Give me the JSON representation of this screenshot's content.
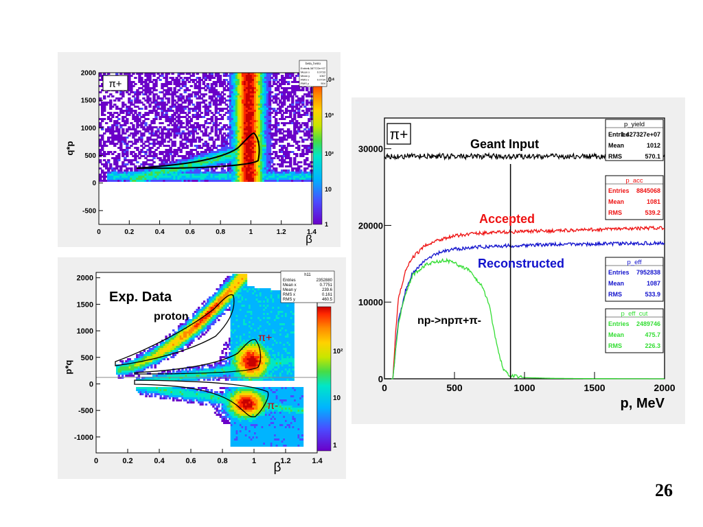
{
  "slide": {
    "page_number": "26"
  },
  "colors": {
    "panel_bg": "#efefef",
    "palette": [
      "#6a00c8",
      "#4b4bff",
      "#00b4ff",
      "#00e6c8",
      "#46dc46",
      "#c8e600",
      "#ffd200",
      "#ff8c00",
      "#ff2800",
      "#c80000"
    ],
    "geant": "#000000",
    "accepted": "#ee1111",
    "reconstructed": "#1111cc",
    "cut": "#33dd33"
  },
  "chart_data": [
    {
      "type": "heatmap",
      "id": "top-left",
      "particle_label": "π+",
      "xlabel": "β",
      "ylabel": "q*p",
      "x_ticks": [
        "0",
        "0.2",
        "0.4",
        "0.6",
        "0.8",
        "1",
        "1.2",
        "1.4"
      ],
      "y_ticks": [
        "-500",
        "0",
        "500",
        "1000",
        "1500",
        "2000"
      ],
      "xlim": [
        0,
        1.4
      ],
      "ylim": [
        -750,
        2000
      ],
      "z_ticks": [
        "1",
        "10",
        "10²",
        "10³",
        "10⁴"
      ],
      "stats_box": {
        "title": "beta_hvsto",
        "rows": [
          [
            "Entries",
            "1.387722e+07"
          ],
          [
            "Mean x",
            "0.9733"
          ],
          [
            "Mean y",
            "1067"
          ],
          [
            "RMS x",
            "0.0734"
          ],
          [
            "RMS y",
            "504"
          ]
        ]
      }
    },
    {
      "type": "heatmap",
      "id": "bottom-left",
      "annotation": "Exp. Data",
      "labels": {
        "proton": "proton",
        "pi_plus": "π+",
        "pi_minus": "π-"
      },
      "xlabel": "β",
      "ylabel": "p*q",
      "x_ticks": [
        "0",
        "0.2",
        "0.4",
        "0.6",
        "0.8",
        "1",
        "1.2",
        "1.4"
      ],
      "y_ticks": [
        "-1000",
        "-500",
        "0",
        "500",
        "1000",
        "1500",
        "2000"
      ],
      "xlim": [
        0,
        1.4
      ],
      "ylim": [
        -1300,
        2100
      ],
      "z_ticks": [
        "1",
        "10",
        "10²"
      ],
      "stats_box": {
        "title": "h11",
        "rows": [
          [
            "Entries",
            "2352880"
          ],
          [
            "Mean x",
            "0.7751"
          ],
          [
            "Mean y",
            "239.6"
          ],
          [
            "RMS x",
            "0.161"
          ],
          [
            "RMS y",
            "460.5"
          ]
        ]
      }
    },
    {
      "type": "line",
      "id": "right",
      "particle_label": "π+",
      "xlabel": "p, MeV",
      "x_ticks": [
        "0",
        "500",
        "1000",
        "1500",
        "2000"
      ],
      "y_ticks": [
        "0",
        "10000",
        "20000",
        "30000"
      ],
      "xlim": [
        0,
        2000
      ],
      "ylim": [
        0,
        34000
      ],
      "cut_line_x": 900,
      "annotations": {
        "geant": "Geant Input",
        "accepted": "Accepted",
        "reconstructed": "Reconstructed",
        "reaction": "np->npπ+π-"
      },
      "series": [
        {
          "name": "p_yield",
          "x": [
            0,
            20,
            40,
            100,
            200,
            400,
            600,
            800,
            1000,
            1200,
            1400,
            1600,
            1800,
            2000
          ],
          "values": [
            29000,
            29000,
            29000,
            29000,
            29000,
            29000,
            29000,
            29000,
            29000,
            29000,
            29000,
            29000,
            29000,
            29000
          ]
        },
        {
          "name": "p_acc",
          "x": [
            0,
            60,
            80,
            100,
            150,
            200,
            300,
            400,
            500,
            600,
            800,
            1000,
            1200,
            1400,
            1600,
            1800,
            2000
          ],
          "values": [
            0,
            0,
            6000,
            10500,
            14000,
            15800,
            17500,
            18200,
            18600,
            18900,
            19100,
            19200,
            19300,
            19400,
            19500,
            19600,
            19700
          ]
        },
        {
          "name": "p_eff",
          "x": [
            0,
            60,
            80,
            100,
            150,
            200,
            300,
            400,
            500,
            600,
            800,
            1000,
            1200,
            1400,
            1600,
            1800,
            2000
          ],
          "values": [
            0,
            0,
            4000,
            7500,
            11500,
            13800,
            15600,
            16500,
            16900,
            17100,
            17300,
            17400,
            17500,
            17550,
            17600,
            17650,
            17700
          ]
        },
        {
          "name": "p_eff_cut",
          "x": [
            0,
            60,
            80,
            100,
            150,
            200,
            300,
            400,
            450,
            500,
            600,
            700,
            750,
            800,
            850,
            900,
            1000,
            1200,
            1500,
            2000
          ],
          "values": [
            0,
            0,
            3800,
            7200,
            11000,
            13500,
            14900,
            15400,
            15400,
            15100,
            14200,
            12000,
            9500,
            4500,
            1200,
            400,
            150,
            60,
            20,
            0
          ]
        }
      ],
      "stats_boxes": [
        {
          "title": "p_yield",
          "color": "#000000",
          "rows": [
            [
              "Entries",
              "1.427327e+07"
            ],
            [
              "Mean",
              "1012"
            ],
            [
              "RMS",
              "570.1"
            ]
          ]
        },
        {
          "title": "p_acc",
          "color": "#ee1111",
          "rows": [
            [
              "Entries",
              "8845068"
            ],
            [
              "Mean",
              "1081"
            ],
            [
              "RMS",
              "539.2"
            ]
          ]
        },
        {
          "title": "p_eff",
          "color": "#1111cc",
          "rows": [
            [
              "Entries",
              "7952838"
            ],
            [
              "Mean",
              "1087"
            ],
            [
              "RMS",
              "533.9"
            ]
          ]
        },
        {
          "title": "p_eff_cut",
          "color": "#33dd33",
          "rows": [
            [
              "Entries",
              "2489746"
            ],
            [
              "Mean",
              "475.7"
            ],
            [
              "RMS",
              "226.3"
            ]
          ]
        }
      ]
    }
  ]
}
